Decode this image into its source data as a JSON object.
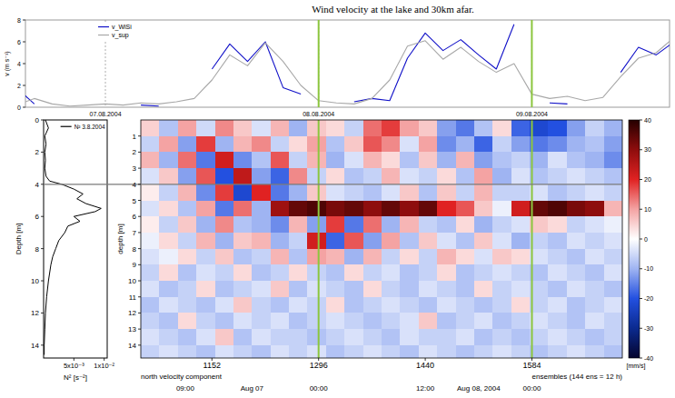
{
  "chart_data": [
    {
      "type": "line",
      "title": "Wind velocity at the lake and 30km afar.",
      "y_label": "v (m s⁻¹)",
      "x": [
        -10,
        -8,
        -6,
        -4,
        -2,
        0,
        2,
        4,
        6,
        8,
        10,
        12,
        14,
        16,
        18,
        20,
        22,
        24,
        26,
        28,
        30,
        32,
        34,
        36,
        38,
        40,
        42,
        44,
        46,
        48,
        50,
        52,
        54,
        56,
        58,
        60,
        62,
        64
      ],
      "xlim": [
        -9,
        63.5
      ],
      "xticks": [
        {
          "value": 0,
          "label": "07.08.2004"
        },
        {
          "value": 24,
          "label": "08.08.2004"
        },
        {
          "value": 48,
          "label": "09.08.2004"
        }
      ],
      "ylim": [
        0,
        8
      ],
      "yticks": [
        0,
        2,
        4,
        6,
        8
      ],
      "grid": true,
      "legend": "upper left",
      "vertical_lines": [
        24,
        48
      ],
      "series": [
        {
          "name": "v_WiSi",
          "color": "#1010c8",
          "values": [
            1.8,
            0.3,
            null,
            null,
            null,
            null,
            null,
            0.2,
            0.1,
            null,
            null,
            3.5,
            5.8,
            4.2,
            6.0,
            1.8,
            1.2,
            null,
            null,
            0.5,
            0.8,
            0.6,
            4.5,
            6.8,
            5.2,
            6.2,
            4.8,
            3.5,
            7.6,
            null,
            0.4,
            0.3,
            null,
            null,
            3.2,
            5.5,
            4.8,
            6.0
          ]
        },
        {
          "name": "v_sup",
          "color": "#a8a8a8",
          "values": [
            0.2,
            0.8,
            0.3,
            0.1,
            0.2,
            0.3,
            0.2,
            0.4,
            0.3,
            0.5,
            0.8,
            2.5,
            4.8,
            3.8,
            5.9,
            4.2,
            2.0,
            0.6,
            0.4,
            0.3,
            0.8,
            2.5,
            5.6,
            6.1,
            4.4,
            5.5,
            4.2,
            3.2,
            4.0,
            1.2,
            0.8,
            1.0,
            0.6,
            0.9,
            2.8,
            4.5,
            5.0,
            6.4
          ]
        }
      ]
    },
    {
      "type": "line",
      "x_label": "N² [s⁻²]",
      "y_label": "Depth [m]",
      "y": [
        0,
        0.5,
        1,
        1.5,
        2,
        2.5,
        3,
        3.5,
        3.8,
        4,
        4.3,
        4.6,
        4.9,
        5.2,
        5.5,
        5.7,
        6,
        6.3,
        6.6,
        7,
        7.5,
        8,
        8.5,
        9,
        10,
        11,
        12,
        13,
        14,
        14.6
      ],
      "xlim": [
        0,
        0.0105
      ],
      "xticks": [
        {
          "value": 0.005,
          "label": "5x10⁻³"
        },
        {
          "value": 0.01,
          "label": "1x10⁻²"
        }
      ],
      "ylim": [
        0,
        14.8
      ],
      "yticks": [
        0,
        2,
        4,
        6,
        8,
        10,
        12,
        14
      ],
      "legend": "upper right",
      "series": [
        {
          "name": "N² 3.8.2004",
          "color": "#000000",
          "values": [
            0.0003,
            0.0008,
            0.0002,
            0.0004,
            0.0002,
            0.0003,
            0.0002,
            0.0004,
            0.001,
            0.003,
            0.005,
            0.0065,
            0.0055,
            0.007,
            0.0095,
            0.0085,
            0.005,
            0.006,
            0.004,
            0.0035,
            0.0025,
            0.002,
            0.0015,
            0.0012,
            0.0008,
            0.0005,
            0.0003,
            0.0002,
            0.0001,
            0.0001
          ]
        }
      ]
    },
    {
      "type": "heatmap",
      "subtitle": "north velocity component",
      "x_label": "ensembles (144 ens = 12 h)",
      "y_label": "depth [m]",
      "xlim": [
        1056,
        1706
      ],
      "xticks": [
        1152,
        1296,
        1440,
        1584
      ],
      "ylim": [
        0,
        14.8
      ],
      "yticks": [
        1,
        2,
        3,
        4,
        5,
        6,
        7,
        8,
        9,
        10,
        11,
        12,
        13,
        14
      ],
      "x_edges": [
        1056,
        1081,
        1106,
        1131,
        1156,
        1181,
        1206,
        1231,
        1256,
        1281,
        1306,
        1331,
        1356,
        1381,
        1406,
        1431,
        1456,
        1481,
        1506,
        1531,
        1556,
        1581,
        1606,
        1631,
        1656,
        1681,
        1706
      ],
      "depth_edges": [
        0,
        1,
        2,
        3,
        4,
        5,
        6,
        7,
        8,
        9,
        10,
        11,
        12,
        13,
        14,
        14.8
      ],
      "cells": [
        [
          5,
          -8,
          10,
          -5,
          12,
          6,
          -4,
          8,
          -10,
          6,
          4,
          -6,
          14,
          18,
          10,
          6,
          -12,
          -16,
          -8,
          4,
          -18,
          -22,
          -20,
          -12,
          -6,
          -10
        ],
        [
          -6,
          10,
          -12,
          18,
          -10,
          8,
          12,
          -6,
          4,
          10,
          -8,
          6,
          16,
          12,
          -4,
          10,
          -14,
          -10,
          -18,
          -6,
          -12,
          -16,
          -14,
          -10,
          -8,
          -12
        ],
        [
          8,
          -10,
          14,
          -16,
          22,
          -14,
          -8,
          16,
          -6,
          8,
          -10,
          -4,
          8,
          4,
          -8,
          6,
          -10,
          8,
          -12,
          -8,
          -6,
          -10,
          -4,
          -8,
          -10,
          -14
        ],
        [
          -4,
          6,
          -12,
          16,
          -20,
          24,
          -12,
          -18,
          12,
          -6,
          4,
          -8,
          -6,
          8,
          -4,
          -6,
          4,
          -8,
          10,
          -10,
          -4,
          -8,
          -6,
          -4,
          -6,
          -8
        ],
        [
          2,
          -6,
          8,
          -14,
          18,
          -22,
          20,
          -16,
          -10,
          6,
          -4,
          -6,
          -8,
          -4,
          6,
          -8,
          6,
          -6,
          8,
          -6,
          -6,
          -4,
          -8,
          -6,
          -4,
          -6
        ],
        [
          -4,
          4,
          -8,
          10,
          -16,
          14,
          -10,
          28,
          34,
          36,
          32,
          34,
          30,
          34,
          30,
          34,
          20,
          16,
          6,
          -2,
          22,
          34,
          36,
          32,
          30,
          8
        ],
        [
          2,
          -6,
          6,
          -10,
          12,
          -8,
          -10,
          -14,
          8,
          -12,
          18,
          -16,
          14,
          -10,
          8,
          -6,
          -8,
          4,
          -10,
          -6,
          -4,
          6,
          4,
          -6,
          -4,
          -2
        ],
        [
          -2,
          4,
          -6,
          8,
          -10,
          6,
          8,
          -10,
          -6,
          22,
          -18,
          16,
          -12,
          10,
          -8,
          6,
          -4,
          -8,
          6,
          -4,
          -10,
          -6,
          -8,
          -4,
          -6,
          -4
        ],
        [
          -4,
          -2,
          4,
          -6,
          6,
          -8,
          -6,
          8,
          -8,
          10,
          8,
          -10,
          8,
          -6,
          4,
          -6,
          8,
          4,
          -4,
          6,
          4,
          -4,
          -6,
          -8,
          -4,
          -6
        ],
        [
          -6,
          4,
          -8,
          -4,
          -6,
          4,
          -8,
          -6,
          4,
          -6,
          -8,
          4,
          -6,
          -4,
          -8,
          -6,
          4,
          -8,
          -6,
          -4,
          -6,
          -8,
          -4,
          -6,
          -8,
          -4
        ],
        [
          -4,
          -8,
          -6,
          4,
          -8,
          -6,
          -4,
          6,
          -8,
          -4,
          -6,
          -8,
          4,
          -6,
          -8,
          -4,
          -6,
          -8,
          4,
          -6,
          -4,
          -6,
          -8,
          -4,
          -6,
          -8
        ],
        [
          -8,
          -4,
          -6,
          -8,
          -4,
          6,
          -6,
          -8,
          -4,
          -6,
          4,
          -8,
          -6,
          -4,
          -6,
          -8,
          -4,
          -6,
          -8,
          -6,
          4,
          -6,
          -4,
          -8,
          -6,
          -4
        ],
        [
          -6,
          -8,
          4,
          -6,
          -8,
          -4,
          -6,
          -4,
          -8,
          -6,
          -4,
          -6,
          -8,
          -6,
          -4,
          6,
          -8,
          -6,
          -4,
          -8,
          -6,
          -4,
          -6,
          -8,
          -4,
          -6
        ],
        [
          -4,
          -6,
          -8,
          -4,
          6,
          -8,
          -4,
          -6,
          -6,
          -8,
          -6,
          -4,
          -6,
          -8,
          -4,
          -6,
          -6,
          -4,
          -8,
          -6,
          -8,
          -6,
          -4,
          -6,
          -8,
          -6
        ],
        [
          -6,
          -4,
          -6,
          -8,
          -4,
          -6,
          -8,
          -4,
          -6,
          -4,
          -8,
          -6,
          -4,
          -6,
          -8,
          -4,
          -6,
          -8,
          -6,
          -4,
          -6,
          -8,
          -6,
          -4,
          -6,
          -8
        ]
      ],
      "colorbar": {
        "range": [
          -40,
          40
        ],
        "ticks": [
          40,
          30,
          20,
          10,
          0,
          -10,
          -20,
          -30,
          -40
        ],
        "label": "[mm/s]"
      },
      "vertical_lines": [
        1296,
        1584
      ],
      "hline_depth": 4,
      "time_ticks": [
        {
          "value": 1116,
          "label": "09:00"
        },
        {
          "value": 1296,
          "label": "00:00"
        },
        {
          "value": 1440,
          "label": "12:00"
        },
        {
          "value": 1584,
          "label": "00:00"
        }
      ],
      "annotations": [
        "Aug 07",
        "Aug 08, 2004"
      ]
    }
  ]
}
